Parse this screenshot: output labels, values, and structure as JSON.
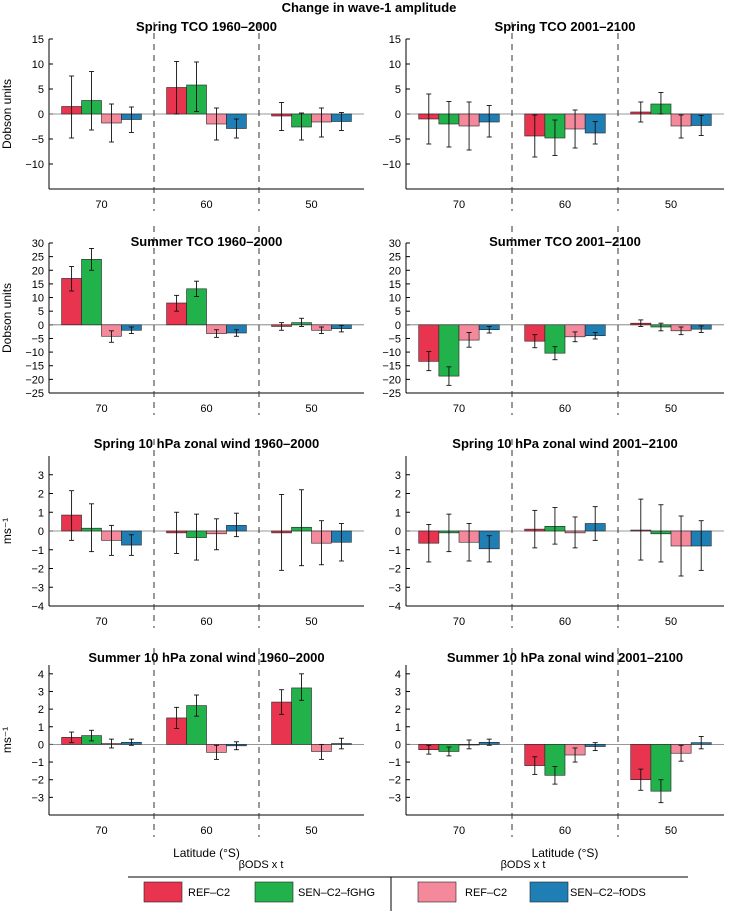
{
  "figure_title": "Change in wave-1 amplitude",
  "colors": {
    "REF_C2_ghg": "#e8344e",
    "SEN_C2_fGHG": "#22b24c",
    "REF_C2_ods": "#f4899c",
    "SEN_C2_fODS": "#1f7fb4"
  },
  "legend": {
    "group_labels": [
      "βODS x t",
      "βODS x t"
    ],
    "entries": [
      {
        "label": "REF–C2",
        "color": "#e8344e"
      },
      {
        "label": "SEN–C2–fGHG",
        "color": "#22b24c"
      },
      {
        "label": "REF–C2",
        "color": "#f4899c"
      },
      {
        "label": "SEN–C2–fODS",
        "color": "#1f7fb4"
      }
    ]
  },
  "chart_data": [
    {
      "type": "bar",
      "title": "Spring TCO 1960–2000",
      "ylabel": "Dobson units",
      "xlabel": "",
      "categories": [
        "70",
        "60",
        "50"
      ],
      "ylim": [
        -15,
        15
      ],
      "yticks": [
        -10,
        -5,
        0,
        5,
        10,
        15
      ],
      "series": [
        {
          "values": [
            1.5,
            5.3,
            -0.4
          ],
          "err_low": [
            -4.8,
            0.0,
            -3.3
          ],
          "err_high": [
            7.6,
            10.5,
            2.3
          ]
        },
        {
          "values": [
            2.7,
            5.8,
            -2.6
          ],
          "err_low": [
            -3.2,
            0.5,
            -5.2
          ],
          "err_high": [
            8.5,
            10.4,
            0.2
          ]
        },
        {
          "values": [
            -1.8,
            -2.0,
            -1.6
          ],
          "err_low": [
            -5.6,
            -5.2,
            -4.6
          ],
          "err_high": [
            2.0,
            1.2,
            1.2
          ]
        },
        {
          "values": [
            -1.1,
            -2.9,
            -1.5
          ],
          "err_low": [
            -3.7,
            -4.8,
            -3.3
          ],
          "err_high": [
            1.4,
            -1.0,
            0.3
          ]
        }
      ]
    },
    {
      "type": "bar",
      "title": "Spring TCO 2001–2100",
      "ylabel": "",
      "xlabel": "",
      "categories": [
        "70",
        "60",
        "50"
      ],
      "ylim": [
        -15,
        15
      ],
      "yticks": [
        -10,
        -5,
        0,
        5,
        10,
        15
      ],
      "series": [
        {
          "values": [
            -1.0,
            -4.4,
            0.4
          ],
          "err_low": [
            -6.0,
            -8.6,
            -1.6
          ],
          "err_high": [
            4.0,
            -0.2,
            2.4
          ]
        },
        {
          "values": [
            -2.0,
            -4.8,
            2.0
          ],
          "err_low": [
            -6.6,
            -8.3,
            0.0
          ],
          "err_high": [
            2.5,
            -1.2,
            4.3
          ]
        },
        {
          "values": [
            -2.4,
            -3.0,
            -2.4
          ],
          "err_low": [
            -7.2,
            -6.8,
            -4.8
          ],
          "err_high": [
            2.4,
            0.8,
            -0.2
          ]
        },
        {
          "values": [
            -1.6,
            -3.8,
            -2.3
          ],
          "err_low": [
            -4.6,
            -6.0,
            -4.3
          ],
          "err_high": [
            1.7,
            -1.5,
            -0.3
          ]
        }
      ]
    },
    {
      "type": "bar",
      "title": "Summer TCO 1960–2000",
      "ylabel": "Dobson units",
      "xlabel": "",
      "categories": [
        "70",
        "60",
        "50"
      ],
      "ylim": [
        -25,
        30
      ],
      "yticks": [
        -25,
        -20,
        -15,
        -10,
        -5,
        0,
        5,
        10,
        15,
        20,
        25,
        30
      ],
      "series": [
        {
          "values": [
            17.0,
            8.0,
            -0.6
          ],
          "err_low": [
            12.4,
            5.0,
            -2.0
          ],
          "err_high": [
            21.4,
            10.8,
            0.8
          ]
        },
        {
          "values": [
            24.0,
            13.2,
            0.8
          ],
          "err_low": [
            20.0,
            10.4,
            -0.6
          ],
          "err_high": [
            28.0,
            16.0,
            2.4
          ]
        },
        {
          "values": [
            -4.2,
            -3.2,
            -2.0
          ],
          "err_low": [
            -6.4,
            -4.6,
            -3.2
          ],
          "err_high": [
            -2.2,
            -1.8,
            -0.8
          ]
        },
        {
          "values": [
            -2.0,
            -3.0,
            -1.4
          ],
          "err_low": [
            -3.2,
            -4.2,
            -2.6
          ],
          "err_high": [
            -0.8,
            -1.8,
            -0.2
          ]
        }
      ]
    },
    {
      "type": "bar",
      "title": "Summer TCO 2001–2100",
      "ylabel": "",
      "xlabel": "",
      "categories": [
        "70",
        "60",
        "50"
      ],
      "ylim": [
        -25,
        30
      ],
      "yticks": [
        -25,
        -20,
        -15,
        -10,
        -5,
        0,
        5,
        10,
        15,
        20,
        25,
        30
      ],
      "series": [
        {
          "values": [
            -13.4,
            -6.0,
            0.6
          ],
          "err_low": [
            -16.8,
            -8.4,
            -0.6
          ],
          "err_high": [
            -9.8,
            -3.6,
            1.8
          ]
        },
        {
          "values": [
            -18.8,
            -10.4,
            -0.8
          ],
          "err_low": [
            -22.2,
            -12.8,
            -2.2
          ],
          "err_high": [
            -15.4,
            -8.0,
            0.6
          ]
        },
        {
          "values": [
            -5.6,
            -4.4,
            -2.2
          ],
          "err_low": [
            -8.2,
            -6.2,
            -3.6
          ],
          "err_high": [
            -2.8,
            -2.6,
            -0.8
          ]
        },
        {
          "values": [
            -1.8,
            -4.0,
            -1.6
          ],
          "err_low": [
            -3.0,
            -5.2,
            -2.8
          ],
          "err_high": [
            -0.6,
            -2.8,
            -0.4
          ]
        }
      ]
    },
    {
      "type": "bar",
      "title": "Spring 10 hPa zonal wind 1960–2000",
      "ylabel": "ms⁻¹",
      "xlabel": "",
      "categories": [
        "70",
        "60",
        "50"
      ],
      "ylim": [
        -4,
        4
      ],
      "yticks": [
        -4,
        -3,
        -2,
        -1,
        0,
        1,
        2,
        3
      ],
      "series": [
        {
          "values": [
            0.85,
            -0.1,
            -0.1
          ],
          "err_low": [
            -0.5,
            -1.2,
            -2.1
          ],
          "err_high": [
            2.15,
            1.0,
            1.95
          ]
        },
        {
          "values": [
            0.15,
            -0.35,
            0.2
          ],
          "err_low": [
            -1.1,
            -1.55,
            -1.85
          ],
          "err_high": [
            1.45,
            0.9,
            2.2
          ]
        },
        {
          "values": [
            -0.5,
            -0.15,
            -0.65
          ],
          "err_low": [
            -1.3,
            -1.0,
            -1.8
          ],
          "err_high": [
            0.3,
            0.65,
            0.55
          ]
        },
        {
          "values": [
            -0.75,
            0.3,
            -0.6
          ],
          "err_low": [
            -1.3,
            -0.3,
            -1.6
          ],
          "err_high": [
            -0.2,
            0.95,
            0.4
          ]
        }
      ]
    },
    {
      "type": "bar",
      "title": "Spring 10 hPa zonal wind 2001–2100",
      "ylabel": "",
      "xlabel": "",
      "categories": [
        "70",
        "60",
        "50"
      ],
      "ylim": [
        -4,
        4
      ],
      "yticks": [
        -4,
        -3,
        -2,
        -1,
        0,
        1,
        2,
        3
      ],
      "series": [
        {
          "values": [
            -0.65,
            0.1,
            0.05
          ],
          "err_low": [
            -1.65,
            -0.9,
            -1.55
          ],
          "err_high": [
            0.35,
            1.1,
            1.7
          ]
        },
        {
          "values": [
            -0.1,
            0.25,
            -0.15
          ],
          "err_low": [
            -1.1,
            -0.7,
            -1.65
          ],
          "err_high": [
            0.9,
            1.25,
            1.4
          ]
        },
        {
          "values": [
            -0.6,
            -0.1,
            -0.8
          ],
          "err_low": [
            -1.6,
            -0.9,
            -2.4
          ],
          "err_high": [
            0.4,
            0.75,
            0.8
          ]
        },
        {
          "values": [
            -0.95,
            0.4,
            -0.8
          ],
          "err_low": [
            -1.65,
            -0.5,
            -2.1
          ],
          "err_high": [
            -0.25,
            1.3,
            0.55
          ]
        }
      ]
    },
    {
      "type": "bar",
      "title": "Summer 10 hPa zonal wind 1960–2000",
      "ylabel": "ms⁻¹",
      "xlabel": "Latitude (°S)",
      "categories": [
        "70",
        "60",
        "50"
      ],
      "ylim": [
        -4,
        4.5
      ],
      "yticks": [
        -3,
        -2,
        -1,
        0,
        1,
        2,
        3,
        4
      ],
      "series": [
        {
          "values": [
            0.4,
            1.5,
            2.4
          ],
          "err_low": [
            0.1,
            0.9,
            1.7
          ],
          "err_high": [
            0.7,
            2.1,
            3.1
          ]
        },
        {
          "values": [
            0.5,
            2.2,
            3.2
          ],
          "err_low": [
            0.2,
            1.6,
            2.5
          ],
          "err_high": [
            0.8,
            2.8,
            4.0
          ]
        },
        {
          "values": [
            0.05,
            -0.45,
            -0.4
          ],
          "err_low": [
            -0.2,
            -0.85,
            -0.85
          ],
          "err_high": [
            0.3,
            -0.05,
            0.0
          ]
        },
        {
          "values": [
            0.12,
            -0.08,
            0.05
          ],
          "err_low": [
            -0.05,
            -0.3,
            -0.25
          ],
          "err_high": [
            0.3,
            0.15,
            0.35
          ]
        }
      ]
    },
    {
      "type": "bar",
      "title": "Summer 10 hPa zonal wind 2001–2100",
      "ylabel": "",
      "xlabel": "Latitude (°S)",
      "categories": [
        "70",
        "60",
        "50"
      ],
      "ylim": [
        -4,
        4.5
      ],
      "yticks": [
        -3,
        -2,
        -1,
        0,
        1,
        2,
        3,
        4
      ],
      "series": [
        {
          "values": [
            -0.3,
            -1.2,
            -2.0
          ],
          "err_low": [
            -0.55,
            -1.7,
            -2.6
          ],
          "err_high": [
            -0.05,
            -0.7,
            -1.4
          ]
        },
        {
          "values": [
            -0.4,
            -1.75,
            -2.65
          ],
          "err_low": [
            -0.65,
            -2.25,
            -3.3
          ],
          "err_high": [
            -0.15,
            -1.25,
            -2.0
          ]
        },
        {
          "values": [
            0.0,
            -0.6,
            -0.5
          ],
          "err_low": [
            -0.25,
            -1.0,
            -0.95
          ],
          "err_high": [
            0.25,
            -0.2,
            -0.05
          ]
        },
        {
          "values": [
            0.12,
            -0.12,
            0.1
          ],
          "err_low": [
            -0.05,
            -0.35,
            -0.25
          ],
          "err_high": [
            0.3,
            0.1,
            0.45
          ]
        }
      ]
    }
  ]
}
